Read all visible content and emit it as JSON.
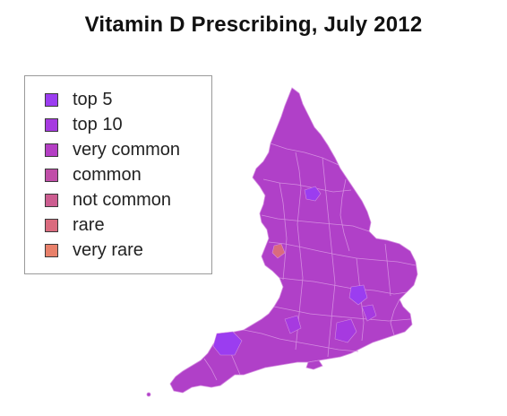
{
  "title": "Vitamin D Prescribing, July 2012",
  "legend": {
    "items": [
      {
        "label": "top 5",
        "color": "#9b3df0"
      },
      {
        "label": "top 10",
        "color": "#a63ae0"
      },
      {
        "label": "very common",
        "color": "#b43fc4"
      },
      {
        "label": "common",
        "color": "#c04ea8"
      },
      {
        "label": "not common",
        "color": "#cc5d90"
      },
      {
        "label": "rare",
        "color": "#da6b7e"
      },
      {
        "label": "very rare",
        "color": "#e8806a"
      }
    ]
  },
  "map": {
    "base_color": "#b040c8",
    "border_color": "#d48be0"
  }
}
